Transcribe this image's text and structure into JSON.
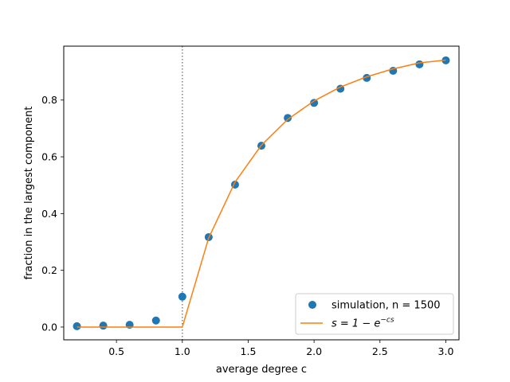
{
  "chart_data": {
    "type": "scatter",
    "xlabel": "average degree c",
    "ylabel": "fraction in the largest component",
    "xlim": [
      0.1,
      3.1
    ],
    "ylim": [
      -0.045,
      0.99
    ],
    "grid": false,
    "legend_position": "lower-right",
    "x_ticks": [
      0.5,
      1.0,
      1.5,
      2.0,
      2.5,
      3.0
    ],
    "x_tick_labels": [
      "0.5",
      "1.0",
      "1.5",
      "2.0",
      "2.5",
      "3.0"
    ],
    "y_ticks": [
      0.0,
      0.2,
      0.4,
      0.6,
      0.8
    ],
    "y_tick_labels": [
      "0.0",
      "0.2",
      "0.4",
      "0.6",
      "0.8"
    ],
    "threshold_line": {
      "x": 1.0,
      "style": "dotted",
      "color": "#808080"
    },
    "series": [
      {
        "name": "simulation, n = 1500",
        "kind": "scatter",
        "color": "#1f77b4",
        "x": [
          0.2,
          0.4,
          0.6,
          0.8,
          1.0,
          1.2,
          1.4,
          1.6,
          1.8,
          2.0,
          2.2,
          2.4,
          2.6,
          2.8,
          3.0
        ],
        "y": [
          0.003,
          0.005,
          0.008,
          0.023,
          0.107,
          0.317,
          0.502,
          0.639,
          0.737,
          0.79,
          0.84,
          0.878,
          0.903,
          0.926,
          0.94
        ]
      },
      {
        "name": "s = 1 − e^{−cs}",
        "legend_main": "s = 1 − e",
        "legend_sup": "−cs",
        "kind": "line",
        "color": "#ff7f0e",
        "x": [
          0.2,
          0.4,
          0.6,
          0.8,
          1.0,
          1.2,
          1.4,
          1.6,
          1.8,
          2.0,
          2.2,
          2.4,
          2.6,
          2.8,
          3.0
        ],
        "y": [
          0.0,
          0.0,
          0.0,
          0.0,
          0.0,
          0.314,
          0.511,
          0.641,
          0.732,
          0.797,
          0.846,
          0.882,
          0.91,
          0.931,
          0.941
        ]
      }
    ]
  }
}
